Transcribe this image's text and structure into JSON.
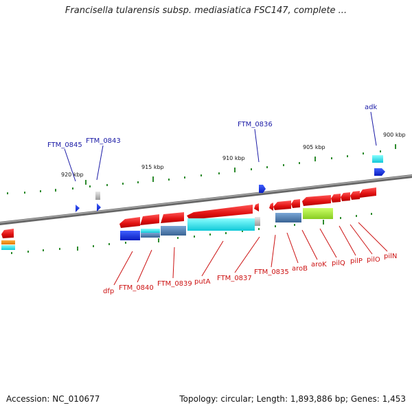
{
  "title": "Francisella tularensis subsp. mediasiatica FSC147, complete ...",
  "footer": {
    "accession": "Accession: NC_010677",
    "topology": "Topology: circular; Length: 1,893,886 bp; Genes: 1,453"
  },
  "colors": {
    "backbone": "#888888",
    "tick": "#2e8b2e",
    "gene_red": "#ee1111",
    "gene_blue": "#1133ee",
    "gene_cyan": "#22dddd",
    "gene_steel": "#4f7fb0",
    "gene_lime": "#aaee33",
    "label_blue": "#1a1aa6",
    "label_red": "#cc1111"
  },
  "scale_labels": [
    "900 kbp",
    "905 kbp",
    "910 kbp",
    "915 kbp",
    "920 kbp"
  ],
  "upper_gene_labels": [
    "adk",
    "FTM_0836",
    "FTM_0843",
    "FTM_0845"
  ],
  "lower_gene_labels": [
    "dfp",
    "FTM_0840",
    "FTM_0839",
    "putA",
    "FTM_0837",
    "FTM_0835",
    "aroB",
    "aroK",
    "pilQ",
    "pilP",
    "pilO",
    "pilN"
  ]
}
